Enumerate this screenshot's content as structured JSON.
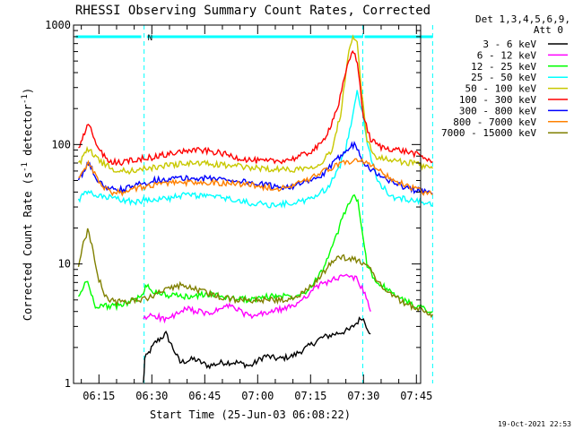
{
  "chart_data": {
    "type": "line",
    "title": "RHESSI Observing Summary Count Rates, Corrected",
    "xlabel": "Start Time (25-Jun-03 06:08:22)",
    "ylabel_main": "Corrected Count Rate (s",
    "ylabel_sup1": "-1",
    "ylabel_mid": " detector",
    "ylabel_sup2": "-1",
    "ylabel_end": ")",
    "y_scale": "log",
    "ylim": [
      1,
      1000
    ],
    "xlim_minutes": [
      6.13,
      7.77
    ],
    "x_ticks": [
      "06:15",
      "06:30",
      "06:45",
      "07:00",
      "07:15",
      "07:30",
      "07:45"
    ],
    "x_tick_positions_minutes": [
      15,
      30,
      45,
      60,
      75,
      90,
      105
    ],
    "y_ticks": [
      "1",
      "10",
      "100",
      "1000"
    ],
    "y_tick_values": [
      1,
      10,
      100,
      1000
    ],
    "grid": false,
    "legend_header": [
      "Det 1,3,4,5,6,9,",
      "Att 0"
    ],
    "legend_position": "right",
    "timestamp": "19-Oct-2021 22:53",
    "flags": {
      "label": "N",
      "bar_segments_minutes": [
        [
          8.4,
          27
        ],
        [
          28.6,
          89.8
        ],
        [
          90.3,
          109.6
        ]
      ],
      "dashed_markers_minutes": [
        27.8,
        89.8,
        109.6
      ]
    },
    "series": [
      {
        "name": "3 - 6 keV",
        "color": "#000000",
        "x": [
          27.6,
          28,
          31,
          34,
          38,
          42,
          46,
          50,
          54,
          58,
          62,
          66,
          70,
          74,
          78,
          82,
          86,
          88,
          89.6,
          92
        ],
        "y": [
          1,
          1.6,
          2.2,
          2.6,
          1.5,
          1.6,
          1.4,
          1.5,
          1.5,
          1.4,
          1.7,
          1.6,
          1.7,
          2.0,
          2.4,
          2.6,
          2.8,
          3.2,
          3.6,
          2.6
        ]
      },
      {
        "name": "6 - 12 keV",
        "color": "#ff00ff",
        "x": [
          27.6,
          30,
          34,
          40,
          46,
          52,
          58,
          64,
          70,
          74,
          78,
          82,
          86,
          88,
          90,
          92
        ],
        "y": [
          3.4,
          3.8,
          3.4,
          4.2,
          3.8,
          4.5,
          3.6,
          4.0,
          4.4,
          5.5,
          6.8,
          7.5,
          8.0,
          7.5,
          6.0,
          4.0
        ]
      },
      {
        "name": "12 - 25 keV",
        "color": "#00ff00",
        "x": [
          9.2,
          10.6,
          11.8,
          12.8,
          14,
          20,
          27.6,
          28.2,
          30,
          34,
          40,
          46,
          52,
          58,
          64,
          70,
          74,
          78,
          80,
          82,
          84,
          86,
          87.4,
          88.4,
          89.6,
          91,
          93,
          97,
          101,
          104,
          107,
          109.6
        ],
        "y": [
          5.2,
          6.5,
          7.2,
          5.6,
          4.5,
          4.4,
          5.4,
          6.8,
          6.0,
          5.5,
          5.3,
          5.6,
          5.2,
          5.0,
          5.4,
          5.4,
          6.0,
          8.5,
          11.5,
          16.0,
          24.0,
          33.0,
          38.0,
          33.0,
          18.0,
          10.0,
          7.5,
          6.0,
          5.0,
          4.6,
          4.3,
          4.0
        ]
      },
      {
        "name": "25 - 50 keV",
        "color": "#00ffff",
        "x": [
          9.2,
          10.6,
          12,
          14,
          18,
          22,
          27,
          28,
          34,
          40,
          46,
          52,
          56,
          60,
          64,
          68,
          72,
          76,
          80,
          83,
          85,
          86.8,
          88.2,
          89.8,
          91.5,
          94,
          98,
          102,
          106,
          109.6
        ],
        "y": [
          34,
          38,
          40,
          37,
          36,
          34,
          33,
          35,
          35,
          38,
          37,
          35,
          33,
          32,
          31,
          32,
          33,
          36,
          44,
          62,
          95,
          170,
          280,
          180,
          90,
          50,
          36,
          35,
          34,
          31
        ]
      },
      {
        "name": "50 - 100 keV",
        "color": "#c8c800",
        "x": [
          9.2,
          10.6,
          12,
          13.6,
          16,
          20,
          24,
          30,
          36,
          42,
          48,
          54,
          58,
          62,
          66,
          70,
          74,
          78,
          81,
          83.5,
          85.5,
          87,
          88.2,
          89.5,
          91,
          93,
          96,
          100,
          104,
          107,
          109.6
        ],
        "y": [
          68,
          80,
          92,
          82,
          70,
          60,
          60,
          64,
          68,
          70,
          68,
          66,
          64,
          63,
          62,
          62,
          64,
          70,
          90,
          180,
          520,
          850,
          700,
          280,
          110,
          80,
          75,
          72,
          70,
          66,
          63
        ]
      },
      {
        "name": "100 - 300 keV",
        "color": "#ff0000",
        "x": [
          9.2,
          10.6,
          12,
          13.4,
          15,
          18,
          21,
          25,
          30,
          36,
          42,
          46,
          50,
          54,
          58,
          62,
          66,
          70,
          74,
          78,
          80.5,
          83,
          85,
          86.6,
          87.6,
          88.6,
          90,
          92,
          95,
          100,
          104,
          107,
          109.6
        ],
        "y": [
          90,
          120,
          145,
          120,
          90,
          72,
          70,
          75,
          78,
          85,
          90,
          88,
          84,
          78,
          74,
          72,
          73,
          76,
          84,
          100,
          140,
          220,
          400,
          580,
          600,
          400,
          170,
          110,
          95,
          90,
          85,
          78,
          72
        ]
      },
      {
        "name": "300 - 800 keV",
        "color": "#0000ff",
        "x": [
          9.2,
          10.6,
          12,
          13.4,
          15,
          18,
          22,
          26,
          30,
          36,
          42,
          48,
          54,
          58,
          62,
          66,
          70,
          74,
          78,
          80,
          82,
          84,
          86,
          87.4,
          88.6,
          90,
          92,
          96,
          100,
          104,
          107,
          109.6
        ],
        "y": [
          48,
          60,
          68,
          60,
          48,
          42,
          42,
          46,
          50,
          52,
          52,
          52,
          50,
          48,
          46,
          44,
          45,
          48,
          54,
          62,
          72,
          85,
          96,
          100,
          90,
          72,
          62,
          52,
          46,
          42,
          40,
          39
        ]
      },
      {
        "name": "800 - 7000 keV",
        "color": "#ff8000",
        "x": [
          9.2,
          10.6,
          12,
          13.4,
          15,
          18,
          22,
          26,
          30,
          36,
          42,
          48,
          54,
          58,
          62,
          66,
          70,
          74,
          78,
          82,
          86,
          88,
          90,
          92,
          96,
          100,
          104,
          107,
          109.6
        ],
        "y": [
          50,
          62,
          70,
          60,
          48,
          40,
          40,
          43,
          46,
          48,
          48,
          48,
          47,
          46,
          44,
          43,
          45,
          50,
          58,
          66,
          72,
          74,
          72,
          68,
          56,
          48,
          43,
          40,
          38
        ]
      },
      {
        "name": "7000 - 15000 keV",
        "color": "#808000",
        "x": [
          9.2,
          10.6,
          11.8,
          13,
          14.6,
          17,
          20,
          24,
          27.6,
          30,
          34,
          38,
          42,
          48,
          54,
          60,
          66,
          70,
          74,
          78,
          81,
          84,
          86,
          88,
          90,
          92,
          94,
          97,
          100,
          104,
          107,
          109.6
        ],
        "y": [
          10,
          15,
          19,
          14,
          8,
          5.2,
          4.8,
          4.9,
          5.0,
          5.4,
          6.0,
          6.6,
          6.2,
          5.4,
          5.0,
          5.0,
          5.0,
          5.2,
          6.0,
          8.0,
          10.5,
          11.5,
          11.0,
          10.8,
          10.2,
          9.0,
          7.0,
          5.8,
          5.0,
          4.4,
          4.0,
          3.8
        ]
      }
    ]
  }
}
